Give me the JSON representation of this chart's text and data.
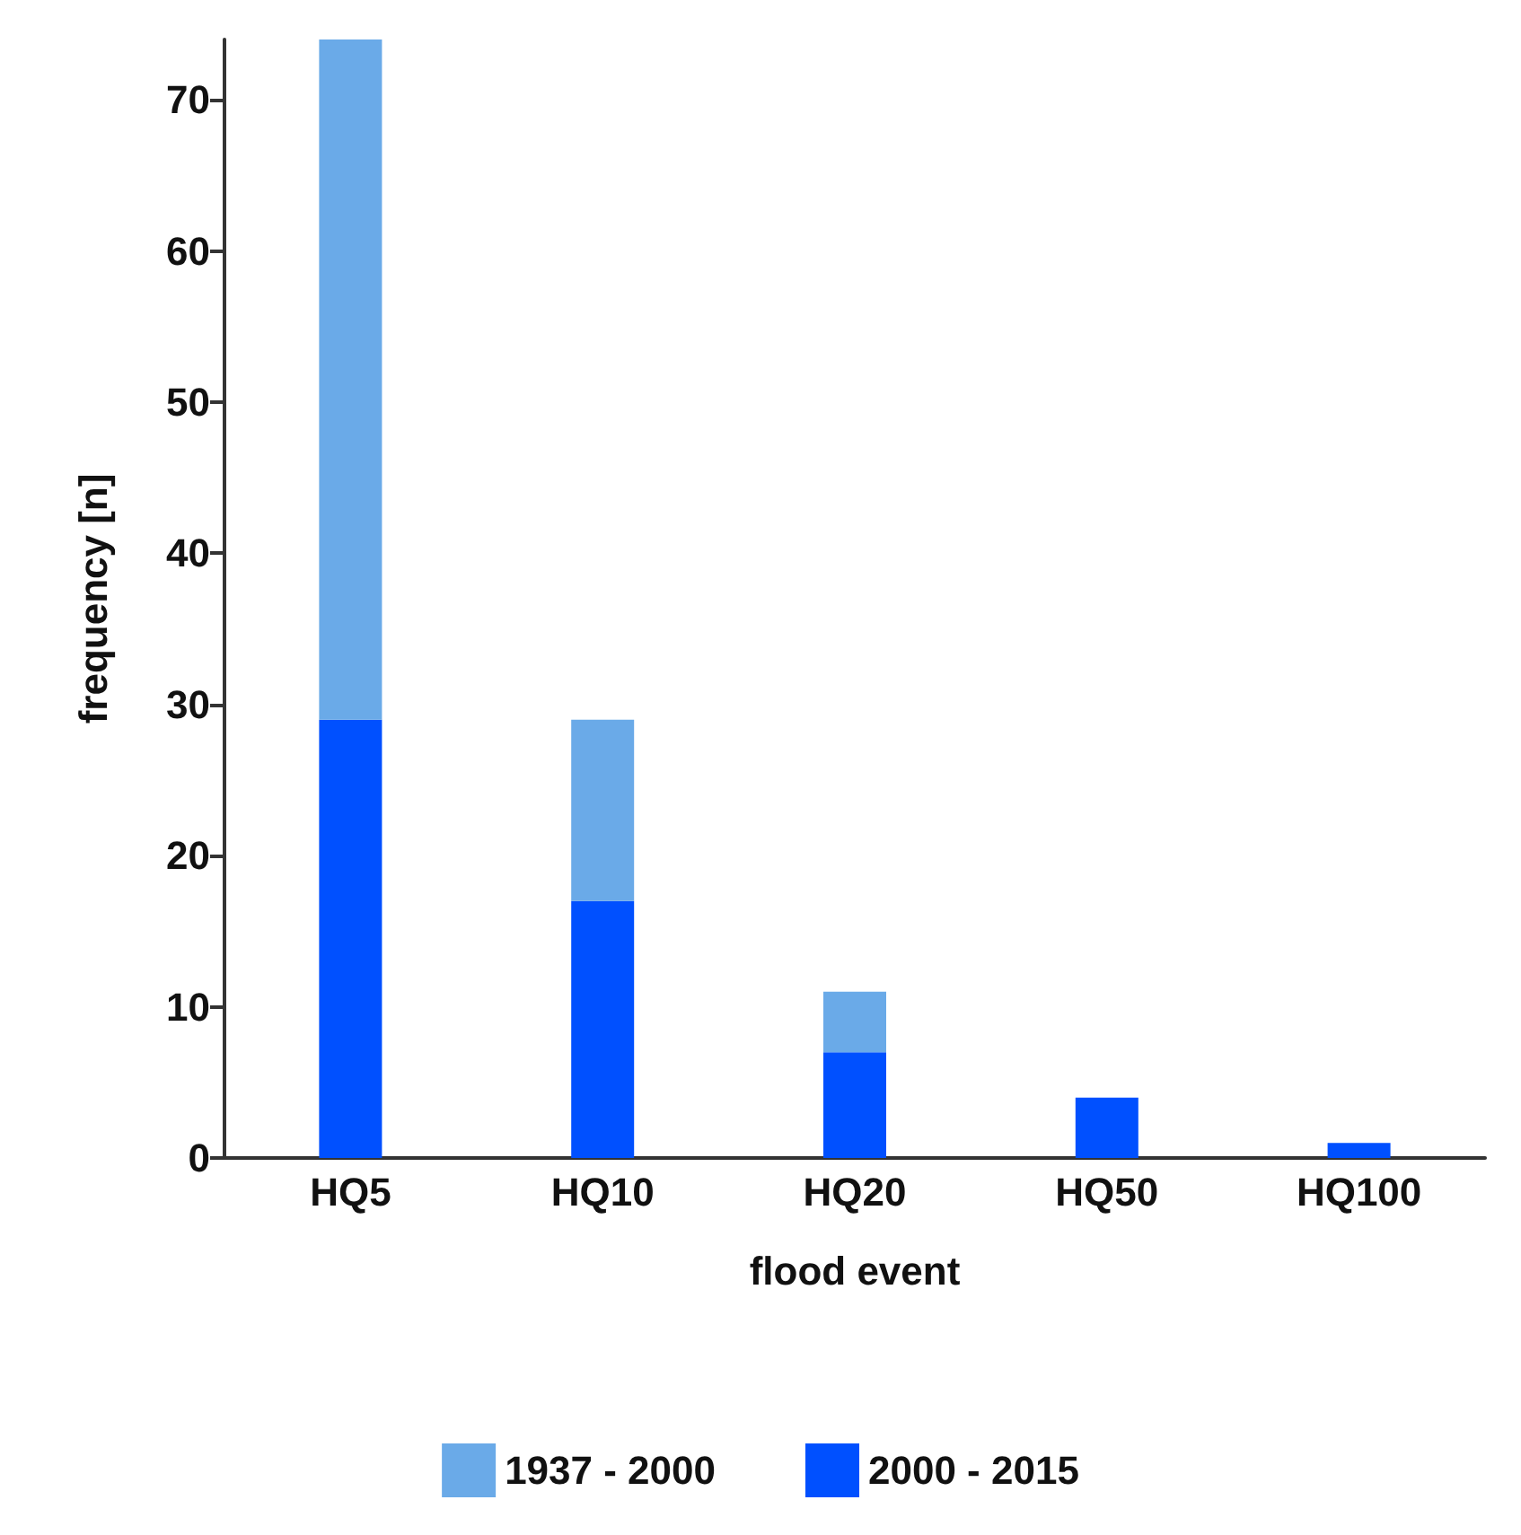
{
  "chart_data": {
    "type": "bar",
    "stacked": true,
    "xlabel": "flood event",
    "ylabel": "frequency [n]",
    "categories": [
      "HQ5",
      "HQ10",
      "HQ20",
      "HQ50",
      "HQ100"
    ],
    "series": [
      {
        "name": "2000 - 2015",
        "color": "#0050ff",
        "values": [
          29,
          17,
          7,
          4,
          1
        ]
      },
      {
        "name": "1937 - 2000",
        "color": "#6aaae8",
        "values": [
          45,
          12,
          4,
          0,
          0
        ]
      }
    ],
    "ylim": [
      0,
      74
    ],
    "yticks": [
      0,
      10,
      20,
      30,
      40,
      50,
      60,
      70
    ],
    "grid": false,
    "legend": "bottom"
  }
}
